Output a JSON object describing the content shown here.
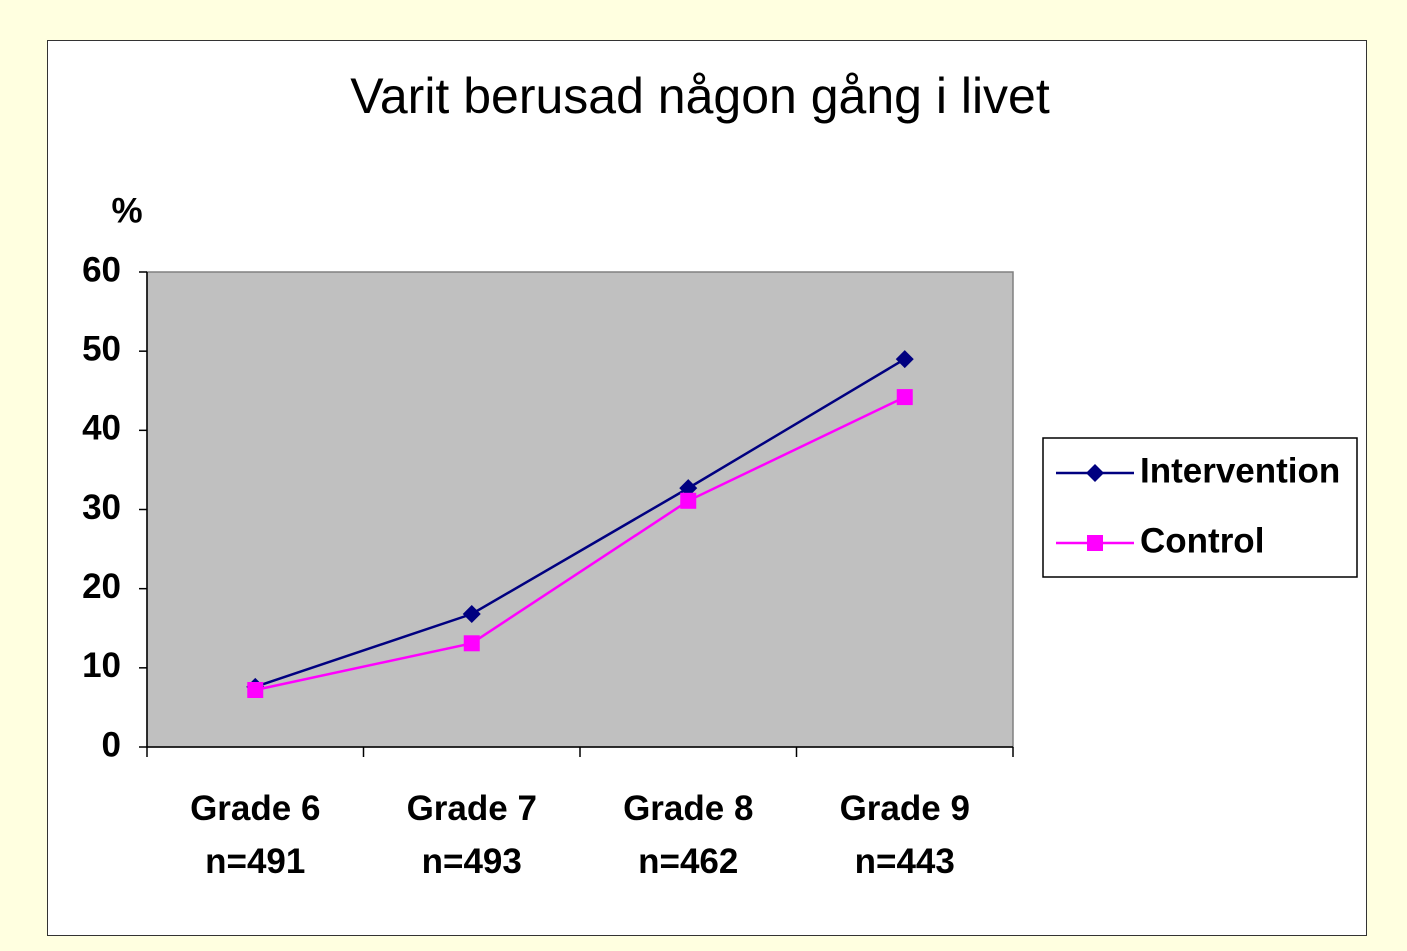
{
  "chart_data": {
    "type": "line",
    "title": "Varit berusad någon gång i livet",
    "y_label": "%",
    "categories": [
      "Grade 6\nn=491",
      "Grade 7\nn=493",
      "Grade 8\nn=462",
      "Grade 9\nn=443"
    ],
    "series": [
      {
        "name": "Intervention",
        "color": "#000080",
        "marker": "diamond",
        "values": [
          7.6,
          16.8,
          32.7,
          49.0
        ]
      },
      {
        "name": "Control",
        "color": "#ff00ff",
        "marker": "square",
        "values": [
          7.2,
          13.1,
          31.1,
          44.2
        ]
      }
    ],
    "ylim": [
      0,
      60
    ],
    "yticks": [
      0,
      10,
      20,
      30,
      40,
      50,
      60
    ],
    "plot_background": "#c0c0c0",
    "legend": "right"
  }
}
